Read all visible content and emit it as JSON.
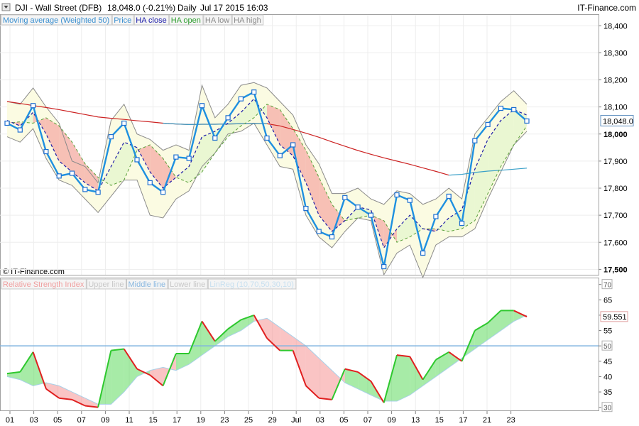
{
  "header": {
    "title": "DJI - Wall Street (DFB)",
    "change": "18,048.0 (-0.21%)",
    "period": "Daily",
    "datetime": "Jul 17 2015 16:03",
    "brand": "IT-Finance.com"
  },
  "watermark": "© IT-Finance.com",
  "legend_top": [
    {
      "label": "Moving average (Weighted 50)",
      "color": "#3a8fd0"
    },
    {
      "label": "Price",
      "color": "#3a8fd0"
    },
    {
      "label": "HA close",
      "color": "#1a1aa8"
    },
    {
      "label": "HA open",
      "color": "#2e9e2e"
    },
    {
      "label": "HA low",
      "color": "#8a8a8a"
    },
    {
      "label": "HA high",
      "color": "#8a8a8a"
    }
  ],
  "legend_bottom": [
    {
      "label": "Relative Strength Index",
      "color": "#f0a0a0"
    },
    {
      "label": "Upper line",
      "color": "#c8c8c8"
    },
    {
      "label": "Middle line",
      "color": "#8ab8e0"
    },
    {
      "label": "Lower line",
      "color": "#c8c8c8"
    },
    {
      "label": "LinReg (10,70,50,30,10)",
      "color": "#c8e0f0"
    }
  ],
  "x_ticks": [
    "01",
    "03",
    "05",
    "07",
    "09",
    "11",
    "15",
    "17",
    "19",
    "23",
    "25",
    "29",
    "Jul",
    "03",
    "05",
    "07",
    "09",
    "13",
    "15",
    "17",
    "21",
    "23"
  ],
  "chart_data": [
    {
      "type": "line",
      "name": "price-panel",
      "ylim": [
        17480,
        18440
      ],
      "yticks": [
        17500,
        17600,
        17700,
        17800,
        17900,
        18000,
        18100,
        18200,
        18300,
        18400
      ],
      "ytick_labels": [
        "17,500",
        "17,600",
        "17,700",
        "17,800",
        "17,900",
        "18,000",
        "18,100",
        "18,200",
        "18,300",
        "18,400"
      ],
      "last_value": 18048,
      "last_label": "18,048.0",
      "x": [
        0,
        1,
        2,
        3,
        4,
        5,
        6,
        7,
        8,
        9,
        10,
        11,
        12,
        13,
        14,
        15,
        16,
        17,
        18,
        19,
        20,
        21,
        22,
        23,
        24,
        25,
        26,
        27,
        28,
        29,
        30,
        31,
        32,
        33,
        34,
        35,
        36,
        37,
        38,
        39,
        40
      ],
      "series": [
        {
          "name": "Price",
          "color": "#1e90e0",
          "values": [
            18040,
            18015,
            18105,
            17935,
            17845,
            17855,
            17795,
            17785,
            17990,
            18040,
            17905,
            17820,
            17785,
            17915,
            17910,
            18105,
            17985,
            18060,
            18130,
            18155,
            17985,
            17920,
            17960,
            17725,
            17640,
            17620,
            17765,
            17730,
            17700,
            17510,
            17775,
            17755,
            17560,
            17695,
            17770,
            17670,
            17975,
            18035,
            18095,
            18090,
            18048
          ]
        },
        {
          "name": "HA close",
          "color": "#1a1aa8",
          "values": [
            18050,
            18030,
            18080,
            18000,
            17900,
            17860,
            17820,
            17790,
            17880,
            17970,
            17950,
            17860,
            17800,
            17840,
            17880,
            17990,
            18010,
            18040,
            18080,
            18130,
            18060,
            17960,
            17920,
            17820,
            17700,
            17640,
            17680,
            17730,
            17720,
            17580,
            17650,
            17700,
            17650,
            17640,
            17690,
            17720,
            17870,
            17980,
            18050,
            18090,
            18070
          ]
        },
        {
          "name": "HA open",
          "color": "#2e9e2e",
          "values": [
            18040,
            18045,
            18040,
            18060,
            18030,
            17970,
            17890,
            17840,
            17810,
            17830,
            17940,
            17960,
            17910,
            17840,
            17820,
            17860,
            17930,
            17990,
            18030,
            18060,
            18110,
            18090,
            18020,
            17940,
            17840,
            17740,
            17680,
            17690,
            17700,
            17680,
            17600,
            17620,
            17650,
            17650,
            17640,
            17650,
            17680,
            17780,
            17880,
            17960,
            18030
          ]
        },
        {
          "name": "HA high",
          "color": "#8a8a8a",
          "values": [
            18120,
            18110,
            18170,
            18100,
            18040,
            17900,
            17880,
            17820,
            18050,
            18110,
            18000,
            17980,
            17940,
            17960,
            17940,
            18180,
            18060,
            18110,
            18180,
            18190,
            18170,
            18120,
            18070,
            17960,
            17890,
            17780,
            17780,
            17800,
            17760,
            17740,
            17790,
            17780,
            17740,
            17760,
            17800,
            17760,
            18000,
            18060,
            18120,
            18160,
            18110
          ]
        },
        {
          "name": "HA low",
          "color": "#8a8a8a",
          "values": [
            17990,
            17970,
            18020,
            17910,
            17830,
            17810,
            17760,
            17710,
            17770,
            17830,
            17830,
            17700,
            17690,
            17760,
            17790,
            17880,
            17930,
            18000,
            18010,
            18040,
            17960,
            17880,
            17870,
            17700,
            17620,
            17580,
            17640,
            17690,
            17680,
            17480,
            17560,
            17590,
            17470,
            17590,
            17620,
            17620,
            17650,
            17760,
            17860,
            17960,
            18010
          ]
        },
        {
          "name": "Moving average (Weighted 50)",
          "color": "#cc2222",
          "values": [
            18120,
            18113,
            18105,
            18098,
            18090,
            18081,
            18072,
            18063,
            18058,
            18054,
            18049,
            18045,
            18040,
            18037,
            18035,
            18036,
            18036,
            18037,
            18038,
            18039,
            18038,
            18030,
            18017,
            18003,
            17988,
            17971,
            17955,
            17939,
            17925,
            17912,
            17900,
            17888,
            17875,
            17862,
            17848,
            17851,
            17858,
            17863,
            17866,
            17870,
            17874
          ]
        }
      ]
    },
    {
      "type": "line",
      "name": "rsi-panel",
      "ylim": [
        29,
        72
      ],
      "yticks": [
        30,
        35,
        40,
        45,
        50,
        55,
        60,
        65,
        70
      ],
      "last_value": 59.551,
      "last_label": "59.551",
      "middle_line": 50,
      "x": [
        0,
        1,
        2,
        3,
        4,
        5,
        6,
        7,
        8,
        9,
        10,
        11,
        12,
        13,
        14,
        15,
        16,
        17,
        18,
        19,
        20,
        21,
        22,
        23,
        24,
        25,
        26,
        27,
        28,
        29,
        30,
        31,
        32,
        33,
        34,
        35,
        36,
        37,
        38,
        39,
        40
      ],
      "series": [
        {
          "name": "Relative Strength Index",
          "color": "#2ec82e",
          "down_color": "#e02020",
          "values": [
            41,
            41.5,
            48,
            36,
            33,
            32.5,
            30.5,
            30,
            48.5,
            49,
            42.5,
            40.5,
            37,
            47.5,
            47.5,
            58,
            51.5,
            55.5,
            58.5,
            60,
            52.5,
            48.5,
            48.5,
            37,
            33,
            32.5,
            42.5,
            41.5,
            38.5,
            31.5,
            47,
            46.5,
            39,
            45.5,
            48,
            45,
            55,
            57.5,
            61.5,
            61.5,
            59.5
          ]
        },
        {
          "name": "LinReg (10,70,50,30,10)",
          "color": "#a8d0e8",
          "values": [
            40,
            39,
            37,
            38,
            37,
            35,
            33,
            31,
            31,
            35,
            40,
            42,
            43,
            42,
            44,
            47,
            50,
            53,
            55,
            58,
            59,
            56,
            53,
            50,
            46,
            42,
            38,
            36,
            34,
            32,
            32,
            34,
            37,
            40,
            43,
            46,
            49,
            52,
            55,
            58,
            60
          ]
        }
      ]
    }
  ]
}
